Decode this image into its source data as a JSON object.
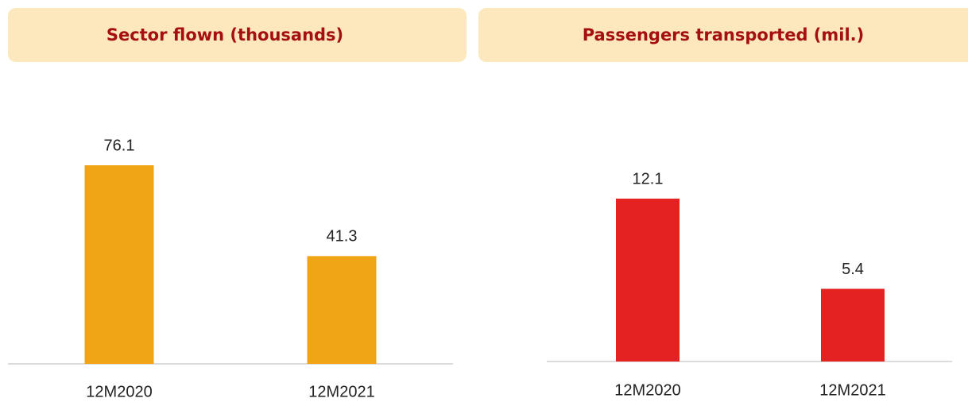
{
  "chart_data": [
    {
      "type": "bar",
      "title": "Sector flown (thousands)",
      "categories": [
        "12M2020",
        "12M2021"
      ],
      "values": [
        76.1,
        41.3
      ],
      "color": "#EFA516"
    },
    {
      "type": "bar",
      "title": "Passengers transported (mil.)",
      "categories": [
        "12M2020",
        "12M2021"
      ],
      "values": [
        12.1,
        5.4
      ],
      "color": "#E52222"
    }
  ]
}
